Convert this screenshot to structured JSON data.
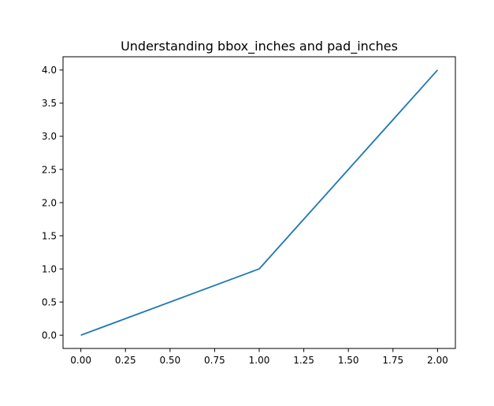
{
  "chart_data": {
    "type": "line",
    "title": "Understanding bbox_inches and pad_inches",
    "xlabel": "",
    "ylabel": "",
    "x": [
      0,
      1,
      2
    ],
    "series": [
      {
        "values": [
          0,
          1,
          4
        ],
        "color": "#1f77b4"
      }
    ],
    "xlim": [
      -0.1,
      2.1
    ],
    "ylim": [
      -0.2,
      4.2
    ],
    "xticks": [
      0.0,
      0.25,
      0.5,
      0.75,
      1.0,
      1.25,
      1.5,
      1.75,
      2.0
    ],
    "xtick_labels": [
      "0.00",
      "0.25",
      "0.50",
      "0.75",
      "1.00",
      "1.25",
      "1.50",
      "1.75",
      "2.00"
    ],
    "yticks": [
      0.0,
      0.5,
      1.0,
      1.5,
      2.0,
      2.5,
      3.0,
      3.5,
      4.0
    ],
    "ytick_labels": [
      "0.0",
      "0.5",
      "1.0",
      "1.5",
      "2.0",
      "2.5",
      "3.0",
      "3.5",
      "4.0"
    ],
    "grid": false,
    "legend": "none"
  }
}
